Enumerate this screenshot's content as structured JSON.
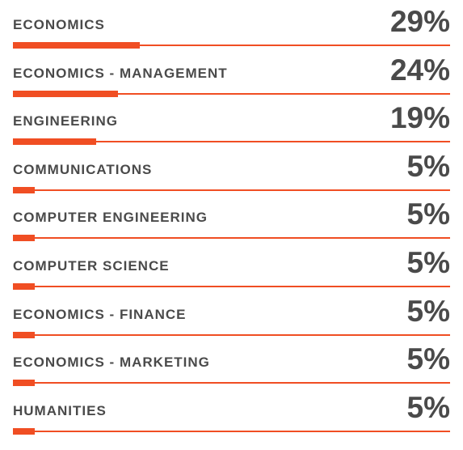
{
  "chart_data": {
    "type": "bar",
    "orientation": "horizontal",
    "categories": [
      "ECONOMICS",
      "ECONOMICS - MANAGEMENT",
      "ENGINEERING",
      "COMMUNICATIONS",
      "COMPUTER ENGINEERING",
      "COMPUTER SCIENCE",
      "ECONOMICS - FINANCE",
      "ECONOMICS - MARKETING",
      "HUMANITIES"
    ],
    "values": [
      29,
      24,
      19,
      5,
      5,
      5,
      5,
      5,
      5
    ],
    "value_labels": [
      "29%",
      "24%",
      "19%",
      "5%",
      "5%",
      "5%",
      "5%",
      "5%",
      "5%"
    ],
    "unit": "%",
    "xlim": [
      0,
      100
    ],
    "grid": false,
    "legend": "none",
    "colors": {
      "bar": "#f04e23",
      "text": "#4a4a4a",
      "background": "#ffffff"
    }
  }
}
